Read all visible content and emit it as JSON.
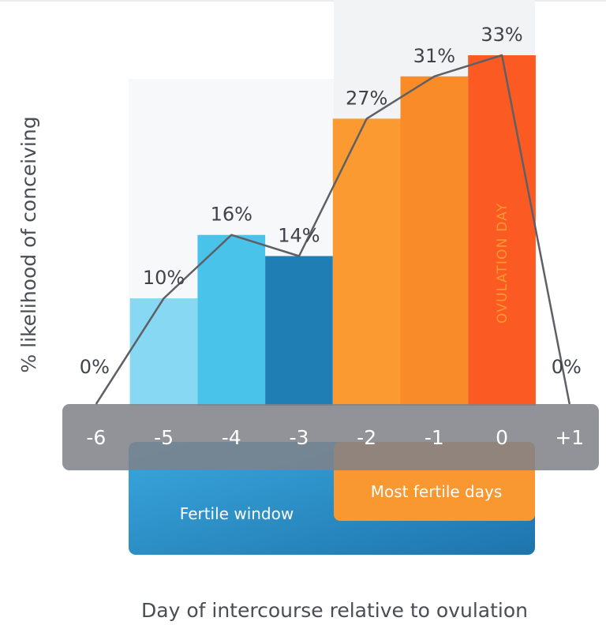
{
  "chart_data": {
    "type": "bar",
    "categories": [
      "-6",
      "-5",
      "-4",
      "-3",
      "-2",
      "-1",
      "0",
      "+1"
    ],
    "values": [
      0,
      10,
      16,
      14,
      27,
      31,
      33,
      0
    ],
    "data_labels": [
      "0%",
      "10%",
      "16%",
      "14%",
      "27%",
      "31%",
      "33%",
      "0%"
    ],
    "overlay_line": true,
    "xlabel": "Day of intercourse relative to ovulation",
    "ylabel": "% likelihood of conceiving",
    "ylim": [
      0,
      33
    ],
    "grid": false,
    "annotations": {
      "fertile_window": "Fertile window",
      "most_fertile_days": "Most fertile days",
      "ovulation_day": "OVULATION DAY"
    }
  },
  "colors": {
    "day_minus5": "#86d8f3",
    "day_minus4": "#49c3ea",
    "day_minus3": "#1f7fb4",
    "day_minus2": "#fb9a30",
    "day_minus1": "#f98b28",
    "day_0": "#fb5a22",
    "fertile_window_start": "#3aa8de",
    "fertile_window_end": "#1e74ad",
    "most_fertile": "#f99731",
    "axis_band": "#7f8188",
    "line": "#5e6066",
    "text": "#3f4249"
  }
}
